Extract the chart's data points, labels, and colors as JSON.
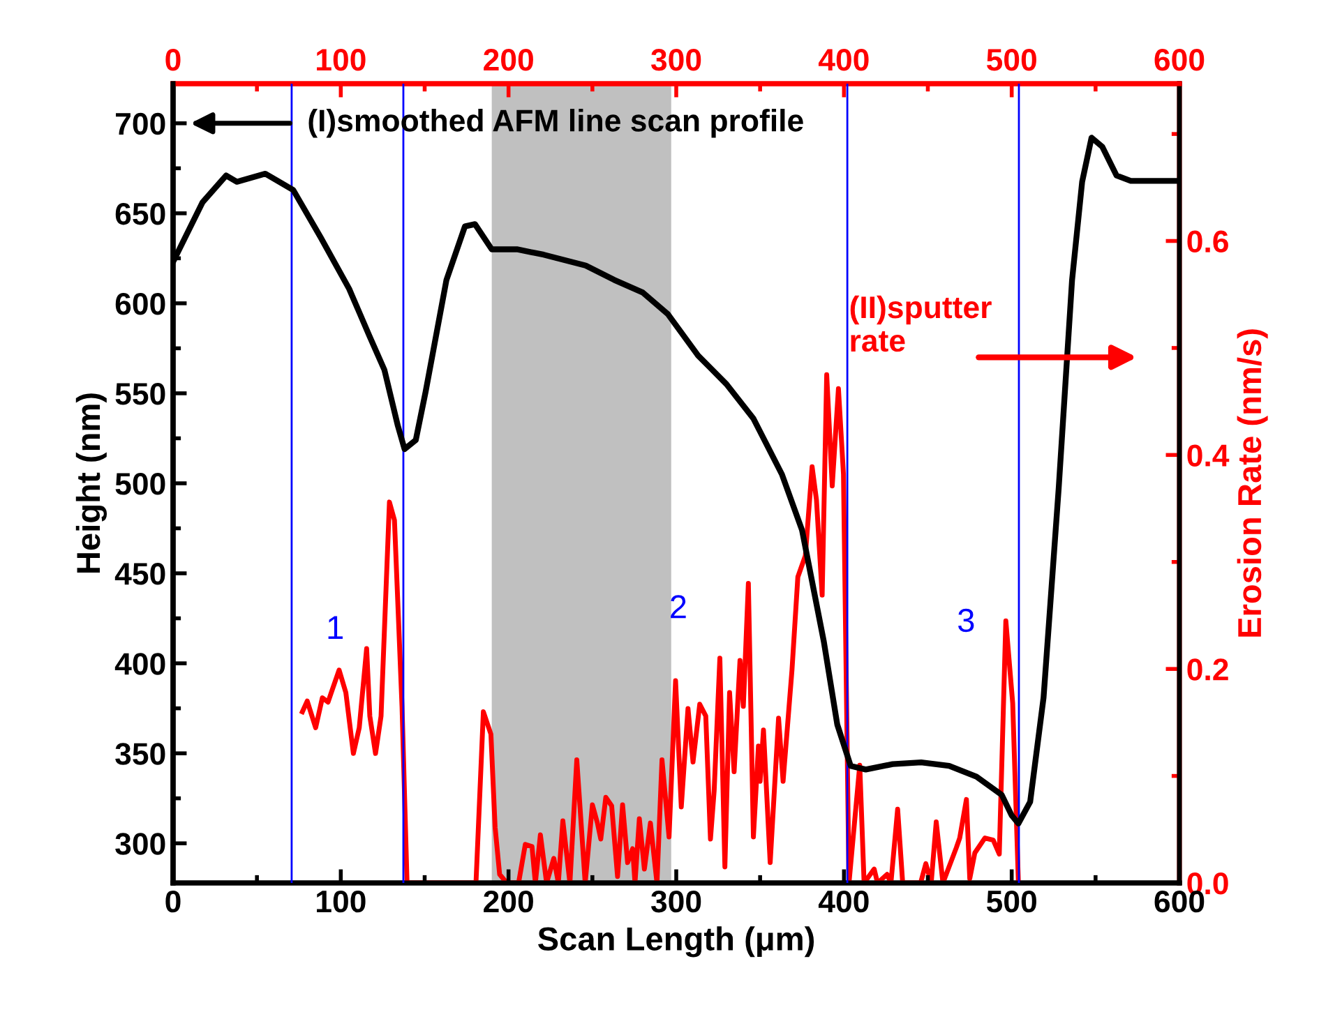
{
  "chart_data": {
    "type": "line",
    "xlabel": "Scan Length (μm)",
    "ylabel": "Height (nm)",
    "y2label": "Erosion Rate (nm/s)",
    "xlim": [
      0,
      600
    ],
    "xticks": [
      0,
      100,
      200,
      300,
      400,
      500,
      600
    ],
    "x2lim": [
      0,
      600
    ],
    "x2ticks": [
      0,
      100,
      200,
      300,
      400,
      500,
      600
    ],
    "ylim": [
      278,
      722
    ],
    "yticks": [
      300,
      350,
      400,
      450,
      500,
      550,
      600,
      650,
      700
    ],
    "y2lim": [
      0,
      0.747
    ],
    "y2ticks": [
      {
        "value": 0,
        "label": "0.0"
      },
      0.2,
      0.4,
      0.6
    ],
    "grid": false,
    "marker": "none",
    "line_style": "solid",
    "series": [
      {
        "color": "#000000",
        "x": [
          0,
          17.5,
          31.6,
          38,
          55,
          71.6,
          88,
          105,
          117,
          126,
          134,
          138,
          144.7,
          150.6,
          163,
          174,
          180,
          190,
          205,
          221,
          246,
          263,
          280,
          295,
          313,
          330,
          346,
          363,
          375,
          388,
          396,
          404,
          413,
          429,
          446,
          462.7,
          479,
          494,
          500,
          504,
          511,
          519,
          528,
          536,
          542,
          547.6,
          554,
          562.5,
          571,
          600
        ],
        "values": [
          623,
          656,
          671,
          667.5,
          672,
          663,
          636.6,
          608,
          582,
          563,
          532,
          519,
          524,
          551,
          613,
          642.7,
          644,
          630,
          630,
          627,
          621,
          613,
          606,
          594,
          571,
          555,
          536,
          505,
          474,
          412,
          366,
          343,
          341,
          344,
          345,
          343,
          337,
          327,
          315.5,
          311,
          323,
          381,
          497,
          613,
          667.5,
          692,
          687,
          671,
          668,
          668
        ]
      },
      {
        "color": "#ff0000",
        "axis": "y2",
        "x": [
          77.1,
          80,
          85,
          89,
          92.4,
          95,
          99,
          103,
          107.5,
          111,
          115.4,
          117.3,
          120.7,
          124,
          129,
          132,
          136.5,
          139.5,
          180.6,
          185,
          189.5,
          192,
          194.7,
          199,
          206,
          210,
          214,
          216,
          219,
          222.7,
          227,
          229.7,
          232.4,
          236.6,
          240.7,
          245.7,
          250,
          253,
          255,
          258,
          261.5,
          265,
          268,
          271,
          274,
          275.4,
          278,
          281,
          284.6,
          288.5,
          291.5,
          295.7,
          299.6,
          303,
          307,
          310,
          314,
          317.6,
          320.4,
          322.6,
          326,
          329,
          331.8,
          334.5,
          338,
          340,
          343,
          346,
          349,
          350,
          352,
          356,
          361,
          363.7,
          369,
          372.5,
          377,
          381,
          383.6,
          387,
          389.7,
          393,
          396.7,
          399.7,
          403,
          409.4,
          412,
          418,
          420,
          425.7,
          428,
          432,
          435,
          445.7,
          448.8,
          452,
          455,
          459,
          467,
          469,
          473,
          475,
          478,
          484,
          489,
          492.6,
          496.5,
          500.6,
          504
        ],
        "values": [
          0.16,
          0.17,
          0.145,
          0.173,
          0.169,
          0.181,
          0.199,
          0.178,
          0.121,
          0.145,
          0.219,
          0.156,
          0.121,
          0.156,
          0.356,
          0.339,
          0.165,
          0,
          0,
          0.16,
          0.139,
          0.052,
          0.008,
          0,
          0,
          0.036,
          0.034,
          0,
          0.045,
          0,
          0.023,
          0,
          0.058,
          0,
          0.115,
          0,
          0.073,
          0.056,
          0.041,
          0.08,
          0.072,
          0.006,
          0.073,
          0.019,
          0.032,
          0,
          0.06,
          0.013,
          0.056,
          0,
          0.115,
          0.043,
          0.189,
          0.071,
          0.163,
          0.113,
          0.167,
          0.156,
          0.041,
          0.086,
          0.21,
          0.015,
          0.178,
          0.104,
          0.208,
          0.165,
          0.28,
          0.043,
          0.128,
          0.095,
          0.143,
          0.019,
          0.154,
          0.095,
          0.199,
          0.286,
          0.306,
          0.389,
          0.358,
          0.269,
          0.475,
          0.371,
          0.462,
          0.382,
          0,
          0.11,
          0,
          0.013,
          0,
          0.008,
          0,
          0.069,
          0,
          0,
          0.018,
          0,
          0.057,
          0,
          0.033,
          0.042,
          0.078,
          0.004,
          0.028,
          0.042,
          0.04,
          0.027,
          0.245,
          0.168,
          0
        ]
      }
    ],
    "ref_lines": [
      {
        "axis": "x",
        "value": 70.7,
        "color": "#0000ff"
      },
      {
        "axis": "x",
        "value": 137.3,
        "color": "#0000ff"
      },
      {
        "axis": "x",
        "value": 402,
        "color": "#0000ff"
      },
      {
        "axis": "x",
        "value": 504.3,
        "color": "#0000ff"
      }
    ],
    "bands": [
      {
        "axis": "x",
        "from": 190,
        "to": 297,
        "color": "#c0c0c0"
      }
    ],
    "annotations": [
      "(I)smoothed AFM line scan profile",
      "(II)sputter\nrate",
      "1",
      "2",
      "3"
    ]
  }
}
